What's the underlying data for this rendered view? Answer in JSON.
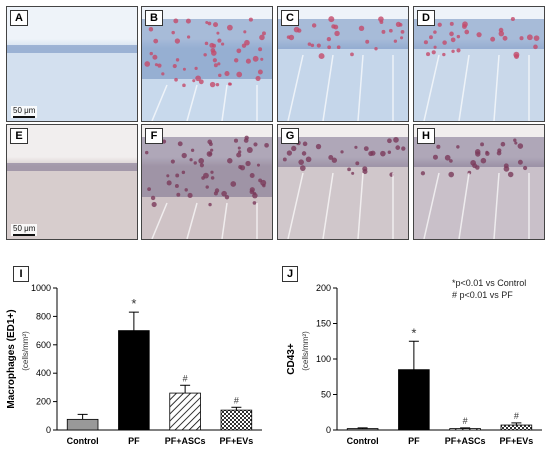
{
  "panels": [
    {
      "letter": "A",
      "scale": "50 μm"
    },
    {
      "letter": "B"
    },
    {
      "letter": "C"
    },
    {
      "letter": "D"
    },
    {
      "letter": "E",
      "scale": "50 μm"
    },
    {
      "letter": "F"
    },
    {
      "letter": "G"
    },
    {
      "letter": "H"
    }
  ],
  "legend": {
    "line1": "*p<0.01 vs Control",
    "line2": "# p<0.01 vs PF"
  },
  "colors": {
    "control": "#999999",
    "pf": "#000000",
    "stain_blue": "#b9cde4",
    "stain_pink": "#c8b3ba"
  },
  "chart_data": [
    {
      "type": "bar",
      "panel": "I",
      "ylabel": "Macrophages (ED1+)",
      "yunit": "(cells/mm²)",
      "categories": [
        "Control",
        "PF",
        "PF+ASCs",
        "PF+EVs"
      ],
      "values": [
        75,
        700,
        260,
        140
      ],
      "errors": [
        35,
        130,
        55,
        20
      ],
      "markers": [
        "",
        "*",
        "#",
        "#"
      ],
      "fills": [
        "gray",
        "black",
        "diagonal",
        "checker"
      ],
      "ylim": [
        0,
        1000
      ],
      "yticks": [
        "0",
        "200",
        "400",
        "600",
        "800",
        "1000"
      ]
    },
    {
      "type": "bar",
      "panel": "J",
      "ylabel": "CD43+",
      "yunit": "(cells/mm²)",
      "categories": [
        "Control",
        "PF",
        "PF+ASCs",
        "PF+EVs"
      ],
      "values": [
        2,
        85,
        2,
        7
      ],
      "errors": [
        1,
        40,
        1,
        3
      ],
      "markers": [
        "",
        "*",
        "#",
        "#"
      ],
      "fills": [
        "gray",
        "black",
        "diagonal",
        "checker"
      ],
      "ylim": [
        0,
        200
      ],
      "yticks": [
        "0",
        "50",
        "100",
        "150",
        "200"
      ]
    }
  ]
}
